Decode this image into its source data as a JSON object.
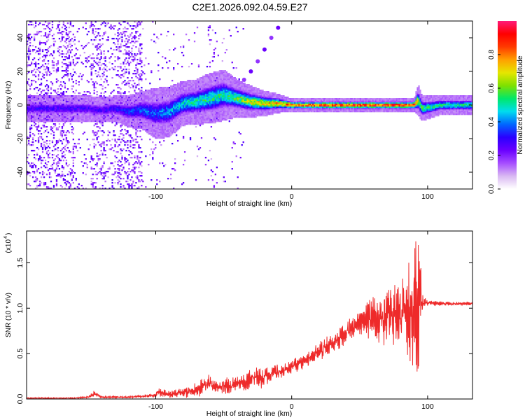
{
  "chart_data": [
    {
      "type": "heatmap",
      "title": "C2E1.2026.092.04.59.E27",
      "xlabel": "Height of straight line (km)",
      "ylabel": "Frequency (Hz)",
      "xlim": [
        -195,
        133
      ],
      "ylim": [
        -50,
        50
      ],
      "xticks": [
        -100,
        0,
        100
      ],
      "xtick_labels": [
        "-100",
        "0",
        "100"
      ],
      "yticks": [
        -40,
        -20,
        0,
        20,
        40
      ],
      "ytick_labels": [
        "-40",
        "-20",
        "0",
        "20",
        "40"
      ],
      "colorbar": {
        "label": "Normalized spectral amplitude",
        "range": [
          0,
          1
        ],
        "ticks": [
          0.0,
          0.2,
          0.4,
          0.6,
          0.8
        ],
        "tick_labels": [
          "0.0",
          "0.2",
          "0.4",
          "0.6",
          "0.8"
        ],
        "colormap": [
          "#ffffff",
          "#d9b8f2",
          "#a64dff",
          "#6a00ff",
          "#2a00ff",
          "#0066ff",
          "#00ddee",
          "#00e86a",
          "#7ee000",
          "#e6e600",
          "#ffa000",
          "#ff3a00",
          "#ff0000",
          "#ff1a7a"
        ]
      },
      "ridge": {
        "x": [
          -150,
          -140,
          -130,
          -120,
          -110,
          -100,
          -90,
          -80,
          -70,
          -60,
          -50,
          -40,
          -30,
          -20,
          -10,
          0,
          20,
          40,
          60,
          80,
          90,
          93,
          96,
          110,
          133
        ],
        "freq": [
          -2,
          -3,
          -2,
          -4,
          -3,
          -5,
          -4,
          1,
          2,
          4,
          6,
          4,
          2,
          1,
          1,
          0,
          0,
          0,
          0,
          0,
          0,
          3,
          -2,
          0,
          0
        ],
        "width": [
          4,
          4,
          4,
          5,
          6,
          8,
          8,
          7,
          7,
          8,
          8,
          6,
          5,
          4,
          3,
          2,
          2,
          2,
          2,
          2,
          2,
          5,
          4,
          3,
          3
        ],
        "peak": [
          0.3,
          0.3,
          0.32,
          0.36,
          0.4,
          0.4,
          0.45,
          0.5,
          0.55,
          0.55,
          0.55,
          0.6,
          0.72,
          0.78,
          0.82,
          0.9,
          0.95,
          0.95,
          0.95,
          0.95,
          0.95,
          0.7,
          0.6,
          0.55,
          0.55
        ]
      },
      "side_track": {
        "x": [
          -35,
          -30,
          -25,
          -20,
          -15,
          -10
        ],
        "freq": [
          15,
          20,
          26,
          33,
          40,
          46
        ]
      }
    },
    {
      "type": "line",
      "xlabel": "Height of straight line (km)",
      "ylabel": "SNR (10 * v/v)",
      "scale_label": "(x10",
      "scale_exponent": "4",
      "scale_suffix": ")",
      "xlim": [
        -195,
        133
      ],
      "ylim": [
        0,
        1.85
      ],
      "xticks": [
        -100,
        0,
        100
      ],
      "xtick_labels": [
        "-100",
        "0",
        "100"
      ],
      "yticks": [
        0.0,
        0.5,
        1.0,
        1.5
      ],
      "ytick_labels": [
        "0.0",
        "0.5",
        "1.0",
        "1.5"
      ],
      "series": [
        {
          "name": "SNR",
          "color": "#ee2a2a",
          "x": [
            -195,
            -160,
            -150,
            -145,
            -140,
            -120,
            -100,
            -98,
            -90,
            -80,
            -70,
            -60,
            -55,
            -50,
            -40,
            -30,
            -20,
            -10,
            -5,
            0,
            10,
            20,
            30,
            40,
            50,
            55,
            60,
            65,
            70,
            75,
            80,
            85,
            90,
            93,
            95,
            96,
            97,
            100,
            110,
            120,
            133
          ],
          "y": [
            0.01,
            0.01,
            0.02,
            0.06,
            0.02,
            0.02,
            0.04,
            0.08,
            0.05,
            0.07,
            0.1,
            0.18,
            0.12,
            0.14,
            0.16,
            0.22,
            0.24,
            0.3,
            0.33,
            0.36,
            0.42,
            0.52,
            0.62,
            0.72,
            0.82,
            0.86,
            0.9,
            0.88,
            0.92,
            0.92,
            0.93,
            0.96,
            1.02,
            1.0,
            1.06,
            1.02,
            1.06,
            1.06,
            1.05,
            1.05,
            1.05
          ],
          "amplitude": [
            0.005,
            0.006,
            0.01,
            0.03,
            0.01,
            0.01,
            0.02,
            0.05,
            0.03,
            0.05,
            0.07,
            0.1,
            0.06,
            0.08,
            0.08,
            0.1,
            0.1,
            0.1,
            0.07,
            0.07,
            0.08,
            0.1,
            0.1,
            0.12,
            0.15,
            0.18,
            0.25,
            0.25,
            0.3,
            0.3,
            0.35,
            0.4,
            0.7,
            0.9,
            0.4,
            0.15,
            0.06,
            0.03,
            0.02,
            0.02,
            0.02
          ]
        }
      ]
    }
  ]
}
